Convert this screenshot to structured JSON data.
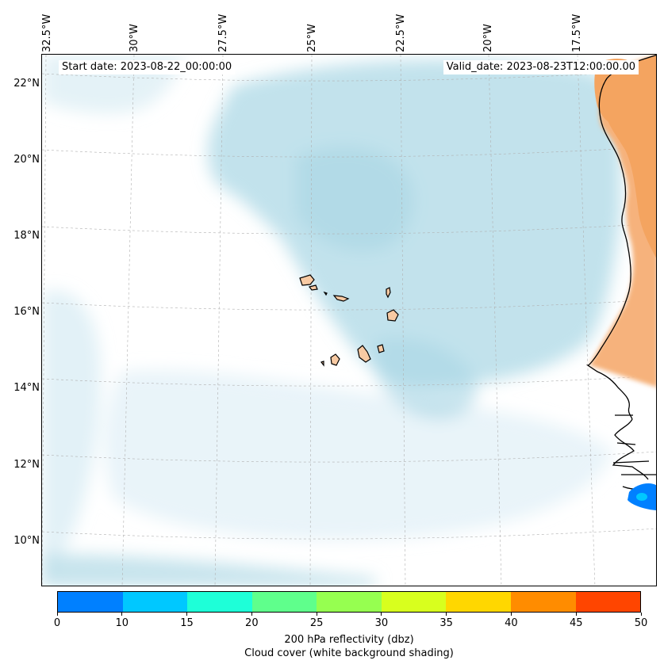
{
  "header": {
    "start_date": "Start date: 2023-08-22_00:00:00",
    "valid_date": "Valid_date: 2023-08-23T12:00:00.00"
  },
  "map": {
    "longitude_labels": [
      "32.5°W",
      "30°W",
      "27.5°W",
      "25°W",
      "22.5°W",
      "20°W",
      "17.5°W"
    ],
    "latitude_labels": [
      "22°N",
      "20°N",
      "18°N",
      "16°N",
      "14°N",
      "12°N",
      "10°N"
    ],
    "extent": {
      "lon_min": -32.6,
      "lon_max": -15.5,
      "lat_min": 8.9,
      "lat_max": 22.8
    },
    "colors": {
      "cloud": "#aed8e6",
      "land_high": "#f4a460",
      "island_fill": "#f8caa3",
      "gridline": "#b0b0b0"
    },
    "features": [
      "Cape Verde islands",
      "West African coast",
      "dust / land shading",
      "reflectivity cell 0–10 dbz"
    ]
  },
  "colorbar": {
    "bounds": [
      0,
      10,
      15,
      20,
      25,
      30,
      35,
      40,
      45,
      50
    ],
    "tick_labels": [
      "0",
      "10",
      "15",
      "20",
      "25",
      "30",
      "35",
      "40",
      "45",
      "50"
    ],
    "colors": [
      "#0080ff",
      "#00c8ff",
      "#1effd8",
      "#5fff8c",
      "#96ff50",
      "#d8ff1e",
      "#ffd700",
      "#ff8c00",
      "#ff4500"
    ],
    "label": "200 hPa reflectivity (dbz)",
    "sublabel": "Cloud cover (white background shading)"
  }
}
